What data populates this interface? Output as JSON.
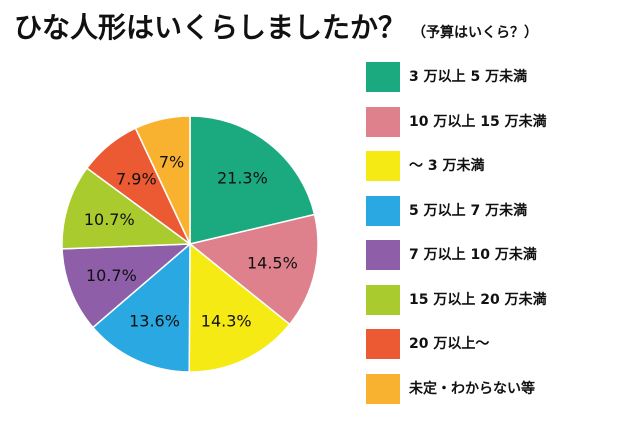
{
  "title": "ひな人形はいくらしましたか？",
  "subtitle": "（予算はいくら？）",
  "chart_data": {
    "type": "pie",
    "categories": [
      "3 万以上 5 万未満",
      "10 万以上 15 万未満",
      "～ 3 万未満",
      "5 万以上 7 万未満",
      "7 万以上 10 万未満",
      "15 万以上 20 万未満",
      "20 万以上～",
      "未定・わからない等"
    ],
    "values": [
      21.3,
      14.5,
      14.3,
      13.6,
      10.7,
      10.7,
      7.9,
      7
    ],
    "value_labels": [
      "21.3%",
      "14.5%",
      "14.3%",
      "13.6%",
      "10.7%",
      "10.7%",
      "7.9%",
      "7%"
    ],
    "colors": [
      "#1BA980",
      "#DE818C",
      "#F5EA14",
      "#29A8E2",
      "#8E5EA8",
      "#A9CB2E",
      "#EC5A33",
      "#F9B22F"
    ],
    "start": "12 o'clock",
    "direction": "clockwise",
    "legend_position": "right"
  }
}
